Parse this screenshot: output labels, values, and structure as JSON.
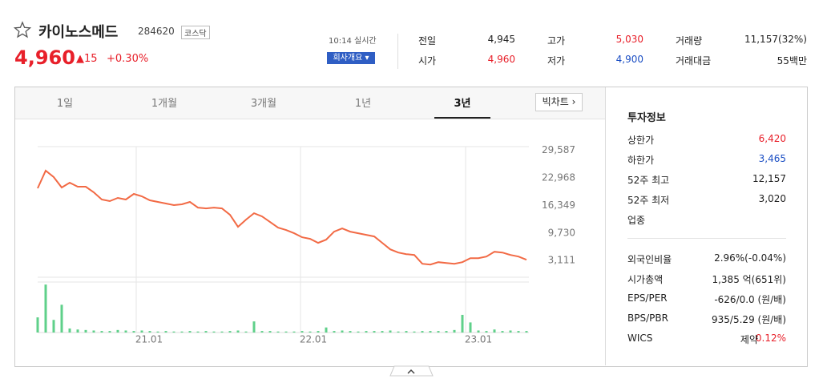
{
  "header": {
    "name": "카이노스메드",
    "code": "284620",
    "market": "코스닥",
    "price": "4,960",
    "change": "▲15",
    "change_rate": "+0.30%",
    "time": "10:14 실시간",
    "company_button": "회사개요"
  },
  "quote": [
    [
      {
        "label": "전일",
        "value": "4,945"
      },
      {
        "label": "고가",
        "value": "5,030"
      },
      {
        "label": "거래량",
        "value": "11,157(32%)"
      }
    ],
    [
      {
        "label": "시가",
        "value": "4,960"
      },
      {
        "label": "저가",
        "value": "4,900"
      },
      {
        "label": "거래대금",
        "value": "55백만"
      }
    ]
  ],
  "tabs": [
    "1일",
    "1개월",
    "3개월",
    "1년",
    "3년"
  ],
  "big_chart": "빅차트",
  "chart_data": [
    {
      "type": "line",
      "color": "#f26a45",
      "values": [
        20481,
        24727,
        23183,
        20674,
        21832,
        20867,
        20867,
        19516,
        17779,
        17393,
        18165,
        17779,
        19130,
        18551,
        17586,
        17200,
        16814,
        16428,
        16621,
        17200,
        15849,
        15656,
        15849,
        15656,
        14112,
        11217,
        12954,
        14498,
        13726,
        12375,
        11024,
        10445,
        9673,
        8708,
        8322,
        7357,
        8129,
        10059,
        10831,
        10059,
        9673,
        9287,
        8901,
        7357,
        5813,
        5041,
        4655,
        4462,
        2339,
        2146,
        2725,
        2532,
        2339,
        2725,
        3690,
        3690,
        4076,
        5234,
        5041,
        4462,
        4076,
        3304
      ],
      "xlim": [
        0,
        61
      ],
      "ylim": [
        -900,
        30500
      ],
      "yticks": [
        {
          "value": 29587,
          "label": "29,587"
        },
        {
          "value": 22968,
          "label": "22,968"
        },
        {
          "value": 16349,
          "label": "16,349"
        },
        {
          "value": 9730,
          "label": "9,730"
        },
        {
          "value": 3111,
          "label": "3,111"
        }
      ],
      "xticks": [
        {
          "value": 12.3,
          "label": "21.01"
        },
        {
          "value": 32.8,
          "label": "22.01"
        },
        {
          "value": 53.4,
          "label": "23.01"
        }
      ]
    },
    {
      "type": "bar",
      "color": "#5fd08a",
      "xlim": [
        0,
        61
      ],
      "ylim": [
        0,
        100
      ],
      "values": [
        30,
        95,
        25,
        55,
        8,
        6,
        5,
        4,
        3,
        3,
        5,
        4,
        3,
        4,
        3,
        2,
        3,
        2,
        2,
        3,
        2,
        3,
        2,
        2,
        3,
        4,
        2,
        22,
        3,
        3,
        2,
        2,
        2,
        3,
        2,
        3,
        10,
        3,
        4,
        3,
        2,
        3,
        3,
        3,
        4,
        2,
        3,
        2,
        3,
        3,
        3,
        3,
        5,
        35,
        20,
        4,
        3,
        6,
        3,
        4,
        3,
        3
      ]
    }
  ],
  "invest": {
    "title": "투자정보",
    "rows": [
      [
        "상한가",
        "6,420"
      ],
      [
        "하한가",
        "3,465"
      ],
      [
        "52주 최고",
        "12,157"
      ],
      [
        "52주 최저",
        "3,020"
      ],
      [
        "업종"
      ]
    ],
    "rows2": [
      [
        "외국인비율",
        "2.96%(-0.04%)"
      ],
      [
        "시가총액",
        "1,385 억(651위)"
      ],
      [
        "EPS/PER",
        "-626/0.0 (원/배)"
      ],
      [
        "BPS/PBR",
        "935/5.29 (원/배)"
      ],
      [
        "WICS",
        "제약",
        "0.12%"
      ]
    ]
  }
}
